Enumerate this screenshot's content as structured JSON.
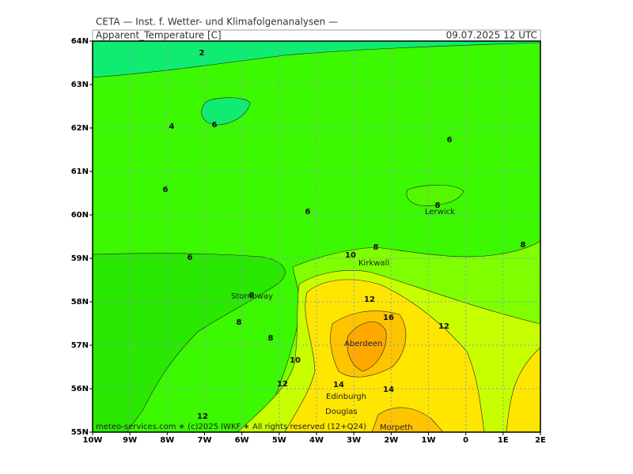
{
  "header": {
    "institute": "CETA — Inst. f. Wetter- und Klimafolgenanalysen —",
    "title": "Apparent_Temperature [C]",
    "valid": "09.07.2025  12 UTC"
  },
  "map": {
    "lon_labels": [
      "10W",
      "9W",
      "8W",
      "7W",
      "6W",
      "5W",
      "4W",
      "3W",
      "2W",
      "1W",
      "0",
      "1E",
      "2E"
    ],
    "lat_labels": [
      "55N",
      "56N",
      "57N",
      "58N",
      "59N",
      "60N",
      "61N",
      "62N",
      "63N",
      "64N"
    ],
    "contour_labels": [
      2,
      4,
      6,
      6,
      6,
      6,
      8,
      8,
      6,
      8,
      10,
      8,
      8,
      8,
      12,
      16,
      12,
      10,
      12,
      14,
      14,
      12
    ],
    "places": [
      "Lerwick",
      "Kirkwall",
      "Stornoway",
      "Aberdeen",
      "Edinburgh",
      "Douglas",
      "Morpeth"
    ],
    "footer": "meteo-services.com ∗ (c)2025 IWKF ∗ All rights reserved (12+Q24)"
  }
}
